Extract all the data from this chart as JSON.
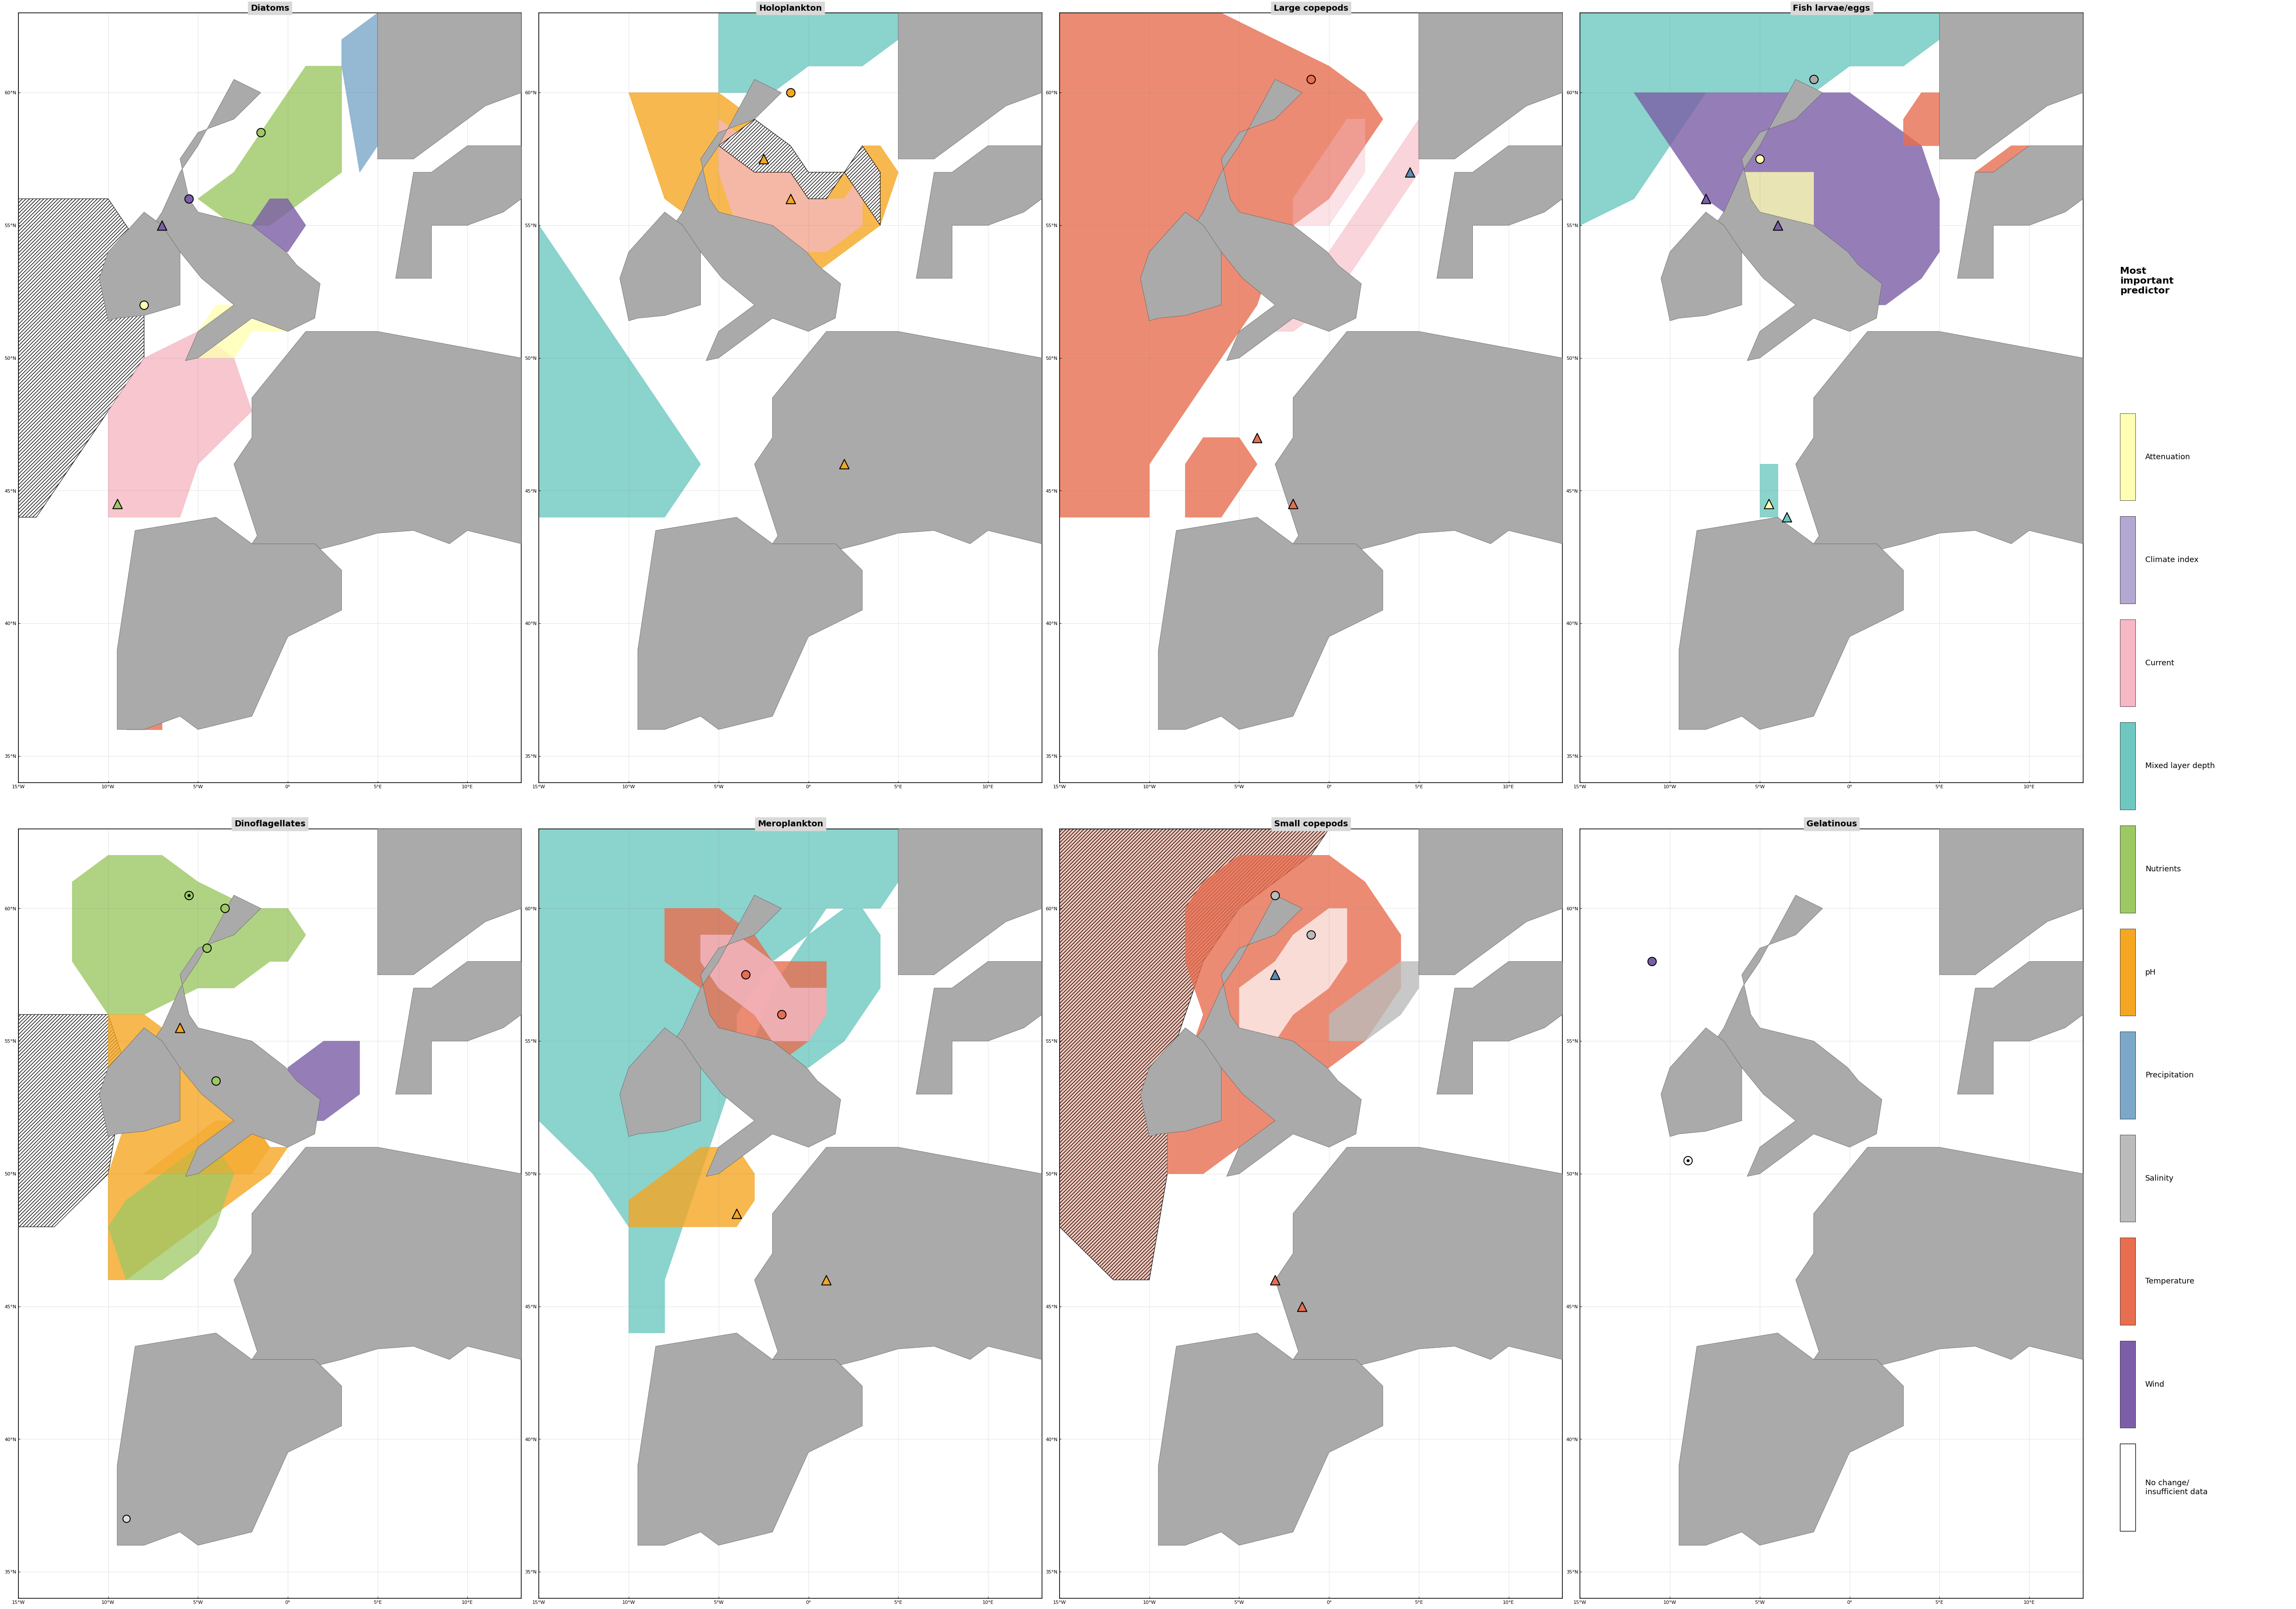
{
  "panels": [
    {
      "title": "Diatoms",
      "row": 0,
      "col": 0
    },
    {
      "title": "Holoplankton",
      "row": 0,
      "col": 1
    },
    {
      "title": "Large copepods",
      "row": 0,
      "col": 2
    },
    {
      "title": "Fish larvae/eggs",
      "row": 0,
      "col": 3
    },
    {
      "title": "Dinoflagellates",
      "row": 1,
      "col": 0
    },
    {
      "title": "Meroplankton",
      "row": 1,
      "col": 1
    },
    {
      "title": "Small copepods",
      "row": 1,
      "col": 2
    },
    {
      "title": "Gelatinous",
      "row": 1,
      "col": 3
    }
  ],
  "legend_title": "Most\nimportant\npredictor",
  "legend_items": [
    {
      "label": "Attenuation",
      "color": "#FFFFB3"
    },
    {
      "label": "Climate index",
      "color": "#B3A8D1"
    },
    {
      "label": "Current",
      "color": "#F5B8C4"
    },
    {
      "label": "Mixed layer depth",
      "color": "#6EC8C1"
    },
    {
      "label": "Nutrients",
      "color": "#9DC964"
    },
    {
      "label": "pH",
      "color": "#F5A623"
    },
    {
      "label": "Precipitation",
      "color": "#7BA7C9"
    },
    {
      "label": "Salinity",
      "color": "#BBBBBB"
    },
    {
      "label": "Temperature",
      "color": "#E86E50"
    },
    {
      "label": "Wind",
      "color": "#7B5EA7"
    },
    {
      "label": "No change/\ninsufficient data",
      "color": "#FFFFFF"
    }
  ],
  "map_extent": [
    -15,
    13,
    34,
    63
  ],
  "xticks": [
    -15,
    -10,
    -5,
    0,
    5,
    10
  ],
  "yticks": [
    35,
    40,
    45,
    50,
    55,
    60
  ],
  "land_color": "#AAAAAA",
  "ocean_color": "#FFFFFF",
  "panel_bg": "#D9D9D9",
  "colors": {
    "attenuation": "#FFFFB3",
    "climate_index": "#B3A8D1",
    "current": "#F5B8C4",
    "mld": "#6EC8C1",
    "nutrients": "#9DC964",
    "ph": "#F5A623",
    "precipitation": "#7BA7C9",
    "salinity": "#BBBBBB",
    "temperature": "#E86E50",
    "wind": "#7B5EA7",
    "white": "#FFFFFF"
  }
}
